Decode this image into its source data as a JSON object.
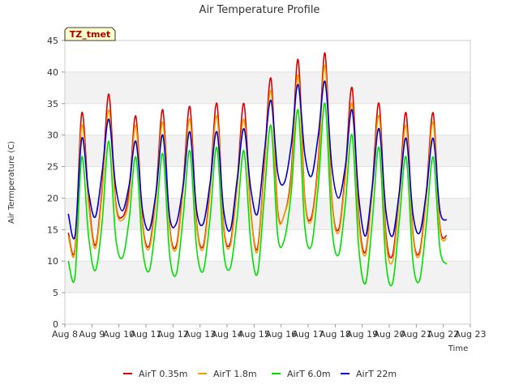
{
  "chart_data": {
    "type": "line",
    "title": "Air Temperature Profile",
    "xlabel": "Time",
    "ylabel": "Air Termperature (C)",
    "badge": "TZ_tmet",
    "xlim": [
      "2024-08-08",
      "2024-08-23"
    ],
    "ylim": [
      0,
      45
    ],
    "x_ticks": [
      "Aug 8",
      "Aug 9",
      "Aug 10",
      "Aug 11",
      "Aug 12",
      "Aug 13",
      "Aug 14",
      "Aug 15",
      "Aug 16",
      "Aug 17",
      "Aug 18",
      "Aug 19",
      "Aug 20",
      "Aug 21",
      "Aug 22",
      "Aug 23"
    ],
    "y_ticks": [
      0,
      5,
      10,
      15,
      20,
      25,
      30,
      35,
      40,
      45
    ],
    "grid": "horizontal bands",
    "legend": "bottom",
    "x": [
      "2024-08-08 03:00",
      "2024-08-08 09:00",
      "2024-08-08 15:00",
      "2024-08-08 21:00",
      "2024-08-09 03:00",
      "2024-08-09 09:00",
      "2024-08-09 15:00",
      "2024-08-09 21:00",
      "2024-08-10 03:00",
      "2024-08-10 09:00",
      "2024-08-10 15:00",
      "2024-08-10 21:00",
      "2024-08-11 03:00",
      "2024-08-11 09:00",
      "2024-08-11 15:00",
      "2024-08-11 21:00",
      "2024-08-12 03:00",
      "2024-08-12 09:00",
      "2024-08-12 15:00",
      "2024-08-12 21:00",
      "2024-08-13 03:00",
      "2024-08-13 09:00",
      "2024-08-13 15:00",
      "2024-08-13 21:00",
      "2024-08-14 03:00",
      "2024-08-14 09:00",
      "2024-08-14 15:00",
      "2024-08-14 21:00",
      "2024-08-15 03:00",
      "2024-08-15 09:00",
      "2024-08-15 15:00",
      "2024-08-15 21:00",
      "2024-08-16 03:00",
      "2024-08-16 09:00",
      "2024-08-16 15:00",
      "2024-08-16 21:00",
      "2024-08-17 03:00",
      "2024-08-17 09:00",
      "2024-08-17 15:00",
      "2024-08-17 21:00",
      "2024-08-18 03:00",
      "2024-08-18 09:00",
      "2024-08-18 15:00",
      "2024-08-18 21:00",
      "2024-08-19 03:00",
      "2024-08-19 09:00",
      "2024-08-19 15:00",
      "2024-08-19 21:00",
      "2024-08-20 03:00",
      "2024-08-20 09:00",
      "2024-08-20 15:00",
      "2024-08-20 21:00",
      "2024-08-21 03:00",
      "2024-08-21 09:00",
      "2024-08-21 15:00",
      "2024-08-21 21:00",
      "2024-08-22 03:00",
      "2024-08-22 09:00",
      "2024-08-22 15:00",
      "2024-08-22 21:00"
    ],
    "series": [
      {
        "name": "AirT 0.35m",
        "color": "#dd0000",
        "values": [
          14.5,
          12.0,
          33.5,
          20.0,
          12.5,
          21.5,
          36.5,
          19.5,
          17.0,
          21.0,
          33.0,
          16.0,
          12.5,
          21.0,
          34.0,
          15.5,
          12.5,
          22.0,
          34.5,
          16.0,
          12.5,
          22.0,
          35.0,
          15.5,
          13.0,
          22.5,
          35.0,
          18.0,
          12.0,
          25.0,
          39.0,
          18.0,
          17.5,
          24.0,
          42.0,
          20.0,
          17.0,
          26.0,
          43.0,
          20.0,
          15.0,
          24.0,
          37.5,
          17.0,
          11.5,
          22.0,
          35.0,
          14.5,
          11.0,
          21.0,
          33.5,
          14.5,
          11.5,
          21.0,
          33.5,
          15.5,
          14.0,
          null,
          null,
          null
        ]
      },
      {
        "name": "AirT 1.8m",
        "color": "#f0a000",
        "values": [
          14.0,
          11.5,
          31.5,
          19.0,
          12.0,
          20.5,
          34.0,
          19.0,
          16.5,
          20.0,
          31.5,
          15.5,
          12.0,
          20.0,
          32.0,
          15.0,
          12.0,
          21.0,
          32.5,
          15.5,
          12.0,
          21.0,
          33.0,
          15.0,
          12.5,
          21.5,
          32.5,
          17.5,
          11.5,
          24.0,
          37.0,
          17.5,
          17.5,
          23.0,
          39.5,
          19.5,
          16.5,
          25.0,
          41.0,
          19.5,
          14.5,
          23.0,
          35.0,
          16.0,
          11.0,
          21.0,
          33.0,
          13.5,
          10.0,
          20.0,
          31.5,
          14.0,
          11.0,
          20.0,
          32.0,
          15.0,
          13.5,
          null,
          null,
          null
        ]
      },
      {
        "name": "AirT 6.0m",
        "color": "#00e000",
        "values": [
          10.0,
          7.5,
          26.5,
          14.0,
          8.5,
          16.0,
          29.0,
          14.0,
          10.5,
          16.5,
          26.5,
          12.0,
          8.5,
          16.5,
          27.0,
          11.0,
          8.0,
          17.0,
          27.5,
          12.0,
          8.5,
          17.0,
          28.0,
          11.5,
          9.0,
          17.0,
          27.5,
          13.0,
          8.0,
          20.0,
          31.5,
          14.0,
          13.5,
          21.0,
          34.0,
          15.5,
          12.5,
          22.0,
          35.0,
          15.5,
          11.0,
          19.0,
          30.0,
          12.0,
          6.5,
          16.5,
          28.0,
          10.0,
          6.5,
          16.5,
          26.5,
          10.0,
          7.0,
          16.0,
          26.5,
          12.0,
          9.5,
          null,
          null,
          null
        ]
      },
      {
        "name": "AirT 22m",
        "color": "#0000cc",
        "values": [
          17.5,
          14.0,
          29.5,
          21.0,
          17.0,
          24.0,
          32.5,
          22.0,
          18.0,
          22.0,
          29.0,
          18.0,
          15.0,
          21.0,
          30.0,
          17.0,
          16.0,
          22.0,
          30.5,
          18.0,
          16.0,
          22.5,
          30.5,
          18.0,
          15.0,
          23.0,
          31.0,
          21.5,
          17.5,
          27.0,
          35.5,
          24.0,
          22.5,
          28.5,
          38.0,
          27.0,
          23.5,
          30.0,
          38.5,
          25.0,
          20.0,
          25.0,
          34.0,
          20.0,
          14.0,
          22.0,
          31.0,
          18.0,
          14.0,
          21.0,
          29.5,
          17.5,
          14.5,
          21.0,
          29.5,
          18.0,
          16.5,
          null,
          null,
          null
        ]
      }
    ]
  }
}
